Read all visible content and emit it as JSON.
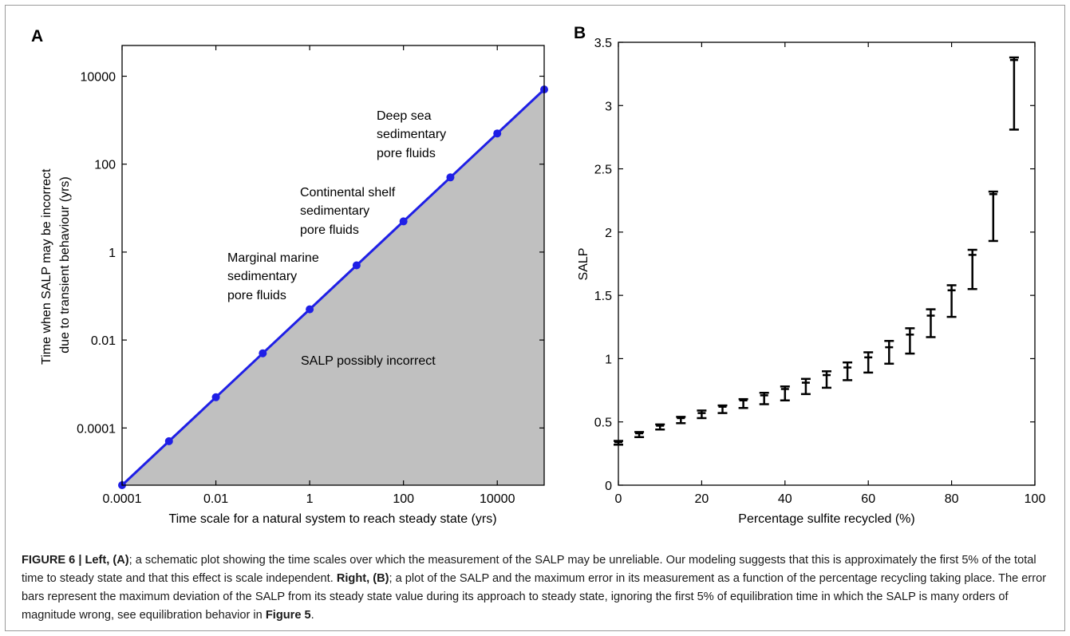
{
  "chart_data": [
    {
      "panel": "A",
      "type": "line",
      "xlabel": "Time scale for a natural system to reach steady state (yrs)",
      "ylabel_line1": "Time when SALP may be incorrect",
      "ylabel_line2": "due to transient behaviour (yrs)",
      "xscale": "log",
      "yscale": "log",
      "xlim": [
        0.0001,
        100000
      ],
      "ylim": [
        5e-06,
        50000
      ],
      "xticks": [
        "0.0001",
        "0.01",
        "1",
        "100",
        "10000"
      ],
      "yticks": [
        "0.0001",
        "0.01",
        "1",
        "100",
        "10000"
      ],
      "grid": false,
      "series": [
        {
          "x": [
            0.0001,
            0.001,
            0.01,
            0.1,
            1,
            10,
            100,
            1000,
            10000,
            100000
          ],
          "y": [
            5e-06,
            5e-05,
            0.0005,
            0.005,
            0.05,
            0.5,
            5,
            50,
            500,
            5000
          ],
          "color": "#1f1fe6",
          "fill_below": "#c0c0c0"
        }
      ],
      "annotations": [
        {
          "lines": [
            "Deep sea",
            "sedimentary",
            "pore fluids"
          ]
        },
        {
          "lines": [
            "Continental shelf",
            "sedimentary",
            "pore fluids"
          ]
        },
        {
          "lines": [
            "Marginal marine",
            "sedimentary",
            "pore fluids"
          ]
        },
        {
          "lines": [
            "SALP possibly incorrect"
          ]
        }
      ]
    },
    {
      "panel": "B",
      "type": "scatter",
      "subtype": "error-bars",
      "xlabel": "Percentage sulfite recycled (%)",
      "ylabel": "SALP",
      "xlim": [
        0,
        100
      ],
      "ylim": [
        0,
        3.5
      ],
      "xticks": [
        "0",
        "20",
        "40",
        "60",
        "80",
        "100"
      ],
      "yticks": [
        "0",
        "0.5",
        "1",
        "1.5",
        "2",
        "2.5",
        "3",
        "3.5"
      ],
      "grid": false,
      "series": [
        {
          "x": [
            0,
            5,
            10,
            15,
            20,
            25,
            30,
            35,
            40,
            45,
            50,
            55,
            60,
            65,
            70,
            75,
            80,
            85,
            90,
            95
          ],
          "y": [
            0.34,
            0.41,
            0.47,
            0.53,
            0.57,
            0.62,
            0.67,
            0.71,
            0.76,
            0.81,
            0.87,
            0.93,
            1.01,
            1.09,
            1.19,
            1.34,
            1.54,
            1.82,
            2.3,
            3.36
          ],
          "low": [
            0.32,
            0.38,
            0.44,
            0.49,
            0.53,
            0.57,
            0.61,
            0.64,
            0.67,
            0.72,
            0.77,
            0.83,
            0.89,
            0.96,
            1.04,
            1.17,
            1.33,
            1.55,
            1.93,
            2.81
          ],
          "high": [
            0.35,
            0.42,
            0.48,
            0.54,
            0.59,
            0.63,
            0.68,
            0.73,
            0.78,
            0.84,
            0.9,
            0.97,
            1.05,
            1.14,
            1.24,
            1.39,
            1.58,
            1.86,
            2.32,
            3.38
          ],
          "color": "#000000"
        }
      ]
    }
  ],
  "caption": {
    "fig_label": "FIGURE 6 | Left, (A)",
    "left_text": "; a schematic plot showing the time scales over which the measurement of the SALP may be unreliable. Our modeling suggests that this is approximately the first 5% of the total time to steady state and that this effect is scale independent. ",
    "right_label": "Right, (B)",
    "right_text": "; a plot of the SALP and the maximum error in its measurement as a function of the percentage recycling taking place. The error bars represent the maximum deviation of the SALP from its steady state value during its approach to steady state, ignoring the first 5% of equilibration time in which the SALP is many orders of magnitude wrong, see equilibration behavior in ",
    "figure_ref": "Figure 5",
    "end": "."
  }
}
